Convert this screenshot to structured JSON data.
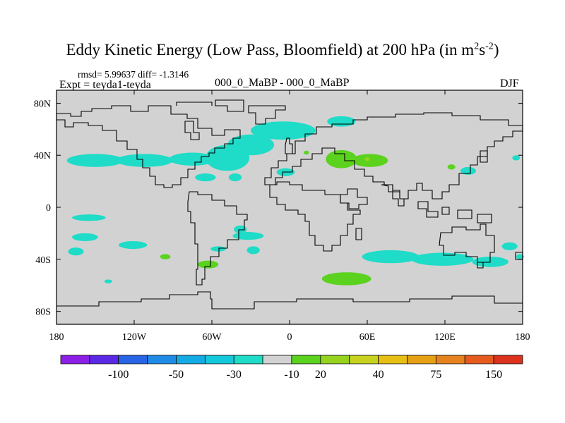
{
  "chart_data": {
    "type": "heatmap",
    "title_main": "Eddy Kinetic Energy (Low Pass, Bloomfield) at 200 hPa (in m",
    "title_sup1": "2",
    "title_mid": "s",
    "title_sup2": "-2",
    "title_end": ")",
    "rmsd_text": "rmsd= 5.99637 diff= -1.3146",
    "expt_text": "Expt = teyda1-teyda",
    "subtitle": "000_0_MaBP - 000_0_MaBP",
    "season": "DJF",
    "xlim": [
      -180,
      180
    ],
    "ylim": [
      -90,
      90
    ],
    "x_ticks": [
      {
        "value": -180,
        "label": "180"
      },
      {
        "value": -120,
        "label": "120W"
      },
      {
        "value": -60,
        "label": "60W"
      },
      {
        "value": 0,
        "label": "0"
      },
      {
        "value": 60,
        "label": "60E"
      },
      {
        "value": 120,
        "label": "120E"
      },
      {
        "value": 180,
        "label": "180"
      }
    ],
    "y_ticks": [
      {
        "value": 80,
        "label": "80N"
      },
      {
        "value": 40,
        "label": "40N"
      },
      {
        "value": 0,
        "label": "0"
      },
      {
        "value": -40,
        "label": "40S"
      },
      {
        "value": -80,
        "label": "80S"
      }
    ],
    "colorbar": {
      "colors": [
        "#8c1ee6",
        "#5a28e6",
        "#2864e6",
        "#1e8ce6",
        "#14aae6",
        "#14c8dc",
        "#1edcc8",
        "#d2d2d2",
        "#5ad21e",
        "#96d21e",
        "#c8d21e",
        "#e6be14",
        "#e6a014",
        "#e6821e",
        "#e65a1e",
        "#dc321e"
      ],
      "labels": [
        {
          "boundary": 2,
          "text": "-100"
        },
        {
          "boundary": 4,
          "text": "-50"
        },
        {
          "boundary": 6,
          "text": "-30"
        },
        {
          "boundary": 8,
          "text": "-10"
        },
        {
          "boundary": 9,
          "text": "20"
        },
        {
          "boundary": 11,
          "text": "40"
        },
        {
          "boundary": 13,
          "text": "75"
        },
        {
          "boundary": 15,
          "text": "150"
        }
      ]
    },
    "anomaly_blobs": [
      {
        "lon": -150,
        "lat": 36,
        "rlon": 22,
        "rlat": 5,
        "color": "#1edcc8"
      },
      {
        "lon": -112,
        "lat": 36,
        "rlon": 22,
        "rlat": 5,
        "color": "#1edcc8"
      },
      {
        "lon": -75,
        "lat": 37,
        "rlon": 18,
        "rlat": 5,
        "color": "#1edcc8"
      },
      {
        "lon": -48,
        "lat": 38,
        "rlon": 17,
        "rlat": 10,
        "color": "#1edcc8"
      },
      {
        "lon": -30,
        "lat": 48,
        "rlon": 18,
        "rlat": 8,
        "color": "#1edcc8"
      },
      {
        "lon": -5,
        "lat": 59,
        "rlon": 25,
        "rlat": 7,
        "color": "#1edcc8"
      },
      {
        "lon": 40,
        "lat": 66,
        "rlon": 11,
        "rlat": 4,
        "color": "#1edcc8"
      },
      {
        "lon": -3,
        "lat": 27,
        "rlon": 7,
        "rlat": 3,
        "color": "#1edcc8"
      },
      {
        "lon": -65,
        "lat": 23,
        "rlon": 8,
        "rlat": 3,
        "color": "#1edcc8"
      },
      {
        "lon": -42,
        "lat": 23,
        "rlon": 5,
        "rlat": 3,
        "color": "#1edcc8"
      },
      {
        "lon": 138,
        "lat": 28,
        "rlon": 6,
        "rlat": 3,
        "color": "#1edcc8"
      },
      {
        "lon": 175,
        "lat": 38,
        "rlon": 3,
        "rlat": 2,
        "color": "#1edcc8"
      },
      {
        "lon": 40,
        "lat": 37,
        "rlon": 12,
        "rlat": 7,
        "color": "#5ad21e"
      },
      {
        "lon": 62,
        "lat": 36,
        "rlon": 14,
        "rlat": 5,
        "color": "#5ad21e"
      },
      {
        "lon": 60,
        "lat": 37,
        "rlon": 2,
        "rlat": 1.5,
        "color": "#96d21e"
      },
      {
        "lon": 13,
        "lat": 42,
        "rlon": 2,
        "rlat": 1.5,
        "color": "#5ad21e"
      },
      {
        "lon": 125,
        "lat": 31,
        "rlon": 3,
        "rlat": 2,
        "color": "#5ad21e"
      },
      {
        "lon": -155,
        "lat": -8,
        "rlon": 13,
        "rlat": 2.5,
        "color": "#1edcc8"
      },
      {
        "lon": -158,
        "lat": -23,
        "rlon": 10,
        "rlat": 3,
        "color": "#1edcc8"
      },
      {
        "lon": -121,
        "lat": -29,
        "rlon": 11,
        "rlat": 3,
        "color": "#1edcc8"
      },
      {
        "lon": -165,
        "lat": -34,
        "rlon": 6,
        "rlat": 3,
        "color": "#1edcc8"
      },
      {
        "lon": -140,
        "lat": -57,
        "rlon": 3,
        "rlat": 1.5,
        "color": "#1edcc8"
      },
      {
        "lon": -38,
        "lat": -17,
        "rlon": 5,
        "rlat": 3,
        "color": "#1edcc8"
      },
      {
        "lon": -32,
        "lat": -22,
        "rlon": 12,
        "rlat": 3,
        "color": "#1edcc8"
      },
      {
        "lon": -55,
        "lat": -32,
        "rlon": 6,
        "rlat": 2,
        "color": "#1edcc8"
      },
      {
        "lon": -28,
        "lat": -33,
        "rlon": 5,
        "rlat": 3,
        "color": "#1edcc8"
      },
      {
        "lon": -96,
        "lat": -38,
        "rlon": 4,
        "rlat": 2,
        "color": "#5ad21e"
      },
      {
        "lon": -63,
        "lat": -44,
        "rlon": 8,
        "rlat": 3,
        "color": "#5ad21e"
      },
      {
        "lon": 44,
        "lat": -55,
        "rlon": 19,
        "rlat": 5,
        "color": "#5ad21e"
      },
      {
        "lon": 78,
        "lat": -38,
        "rlon": 22,
        "rlat": 5,
        "color": "#1edcc8"
      },
      {
        "lon": 118,
        "lat": -40,
        "rlon": 24,
        "rlat": 5,
        "color": "#1edcc8"
      },
      {
        "lon": 155,
        "lat": -42,
        "rlon": 14,
        "rlat": 4,
        "color": "#1edcc8"
      },
      {
        "lon": 170,
        "lat": -30,
        "rlon": 6,
        "rlat": 3,
        "color": "#1edcc8"
      },
      {
        "lon": 178,
        "lat": -38,
        "rlon": 3,
        "rlat": 2,
        "color": "#1edcc8"
      }
    ]
  }
}
